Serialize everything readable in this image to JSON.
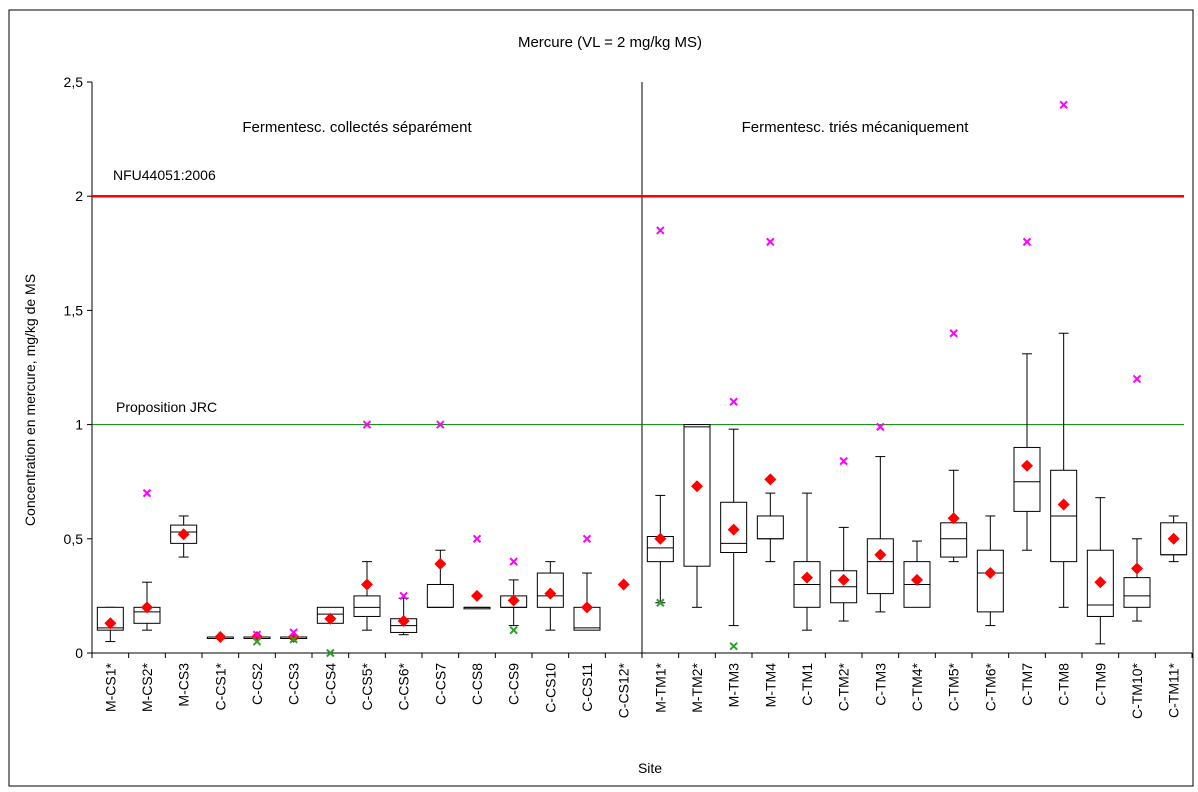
{
  "chart_data": {
    "type": "boxplot",
    "title": "Mercure (VL = 2 mg/kg MS)",
    "xlabel": "Site",
    "ylabel": "Concentration en mercure, mg/kg de MS",
    "ylim": [
      0,
      2.5
    ],
    "yticks": [
      0,
      0.5,
      1,
      1.5,
      2,
      2.5
    ],
    "ytick_labels": [
      "0",
      "0,5",
      "1",
      "1,5",
      "2",
      "2,5"
    ],
    "grid": false,
    "group_labels": [
      "Fermentesc. collectés séparément",
      "Fermentesc. triés mécaniquement"
    ],
    "reference_lines": [
      {
        "label": "NFU44051:2006",
        "value": 2.0,
        "color": "#ff0000"
      },
      {
        "label": "Proposition JRC",
        "value": 1.0,
        "color": "#008000"
      }
    ],
    "colors": {
      "mean": "#ff0000",
      "max_outlier": "#ff00ff",
      "min_outlier": "#2ca02c",
      "box": "#000000"
    },
    "categories": [
      "M-CS1*",
      "M-CS2*",
      "M-CS3",
      "C-CS1*",
      "C-CS2",
      "C-CS3",
      "C-CS4",
      "C-CS5*",
      "C-CS6*",
      "C-CS7",
      "C-CS8",
      "C-CS9",
      "C-CS10",
      "C-CS11",
      "C-CS12*",
      "M-TM1*",
      "M-TM2*",
      "M-TM3",
      "M-TM4",
      "C-TM1",
      "C-TM2*",
      "C-TM3",
      "C-TM4*",
      "C-TM5*",
      "C-TM6*",
      "C-TM7",
      "C-TM8",
      "C-TM9",
      "C-TM10*",
      "C-TM11*"
    ],
    "boxes": [
      {
        "q1": 0.1,
        "median": 0.11,
        "q3": 0.2,
        "wlo": 0.05,
        "whi": 0.2,
        "mean": 0.13,
        "max": null,
        "min": null
      },
      {
        "q1": 0.13,
        "median": 0.18,
        "q3": 0.2,
        "wlo": 0.1,
        "whi": 0.31,
        "mean": 0.2,
        "max": 0.7,
        "min": null
      },
      {
        "q1": 0.48,
        "median": 0.53,
        "q3": 0.56,
        "wlo": 0.42,
        "whi": 0.6,
        "mean": 0.52,
        "max": null,
        "min": null
      },
      {
        "q1": 0.07,
        "median": 0.07,
        "q3": 0.07,
        "wlo": null,
        "whi": null,
        "mean": 0.07,
        "max": null,
        "min": null
      },
      {
        "q1": 0.07,
        "median": 0.07,
        "q3": 0.07,
        "wlo": null,
        "whi": null,
        "mean": 0.07,
        "max": 0.08,
        "min": 0.05
      },
      {
        "q1": 0.07,
        "median": 0.07,
        "q3": 0.07,
        "wlo": null,
        "whi": null,
        "mean": 0.07,
        "max": 0.09,
        "min": 0.06
      },
      {
        "q1": 0.13,
        "median": 0.17,
        "q3": 0.2,
        "wlo": null,
        "whi": null,
        "mean": 0.15,
        "max": null,
        "min": 0.0
      },
      {
        "q1": 0.16,
        "median": 0.2,
        "q3": 0.25,
        "wlo": 0.1,
        "whi": 0.4,
        "mean": 0.3,
        "max": 1.0,
        "min": null
      },
      {
        "q1": 0.09,
        "median": 0.12,
        "q3": 0.15,
        "wlo": 0.08,
        "whi": 0.24,
        "mean": 0.14,
        "max": 0.25,
        "min": null
      },
      {
        "q1": 0.2,
        "median": 0.2,
        "q3": 0.3,
        "wlo": null,
        "whi": 0.45,
        "mean": 0.39,
        "max": 1.0,
        "min": null
      },
      {
        "q1": 0.2,
        "median": 0.2,
        "q3": 0.2,
        "wlo": null,
        "whi": null,
        "mean": 0.25,
        "max": 0.5,
        "min": null
      },
      {
        "q1": 0.2,
        "median": 0.2,
        "q3": 0.25,
        "wlo": 0.12,
        "whi": 0.32,
        "mean": 0.23,
        "max": 0.4,
        "min": 0.1
      },
      {
        "q1": 0.2,
        "median": 0.25,
        "q3": 0.35,
        "wlo": 0.1,
        "whi": 0.4,
        "mean": 0.26,
        "max": null,
        "min": null
      },
      {
        "q1": 0.1,
        "median": 0.11,
        "q3": 0.2,
        "wlo": null,
        "whi": 0.35,
        "mean": 0.2,
        "max": 0.5,
        "min": null
      },
      {
        "q1": null,
        "median": null,
        "q3": null,
        "wlo": null,
        "whi": null,
        "mean": 0.3,
        "max": null,
        "min": null
      },
      {
        "q1": 0.4,
        "median": 0.46,
        "q3": 0.51,
        "wlo": 0.22,
        "whi": 0.69,
        "mean": 0.5,
        "max": 1.85,
        "min": 0.22
      },
      {
        "q1": 0.38,
        "median": 0.99,
        "q3": 1.0,
        "wlo": 0.2,
        "whi": null,
        "mean": 0.73,
        "max": null,
        "min": null
      },
      {
        "q1": 0.44,
        "median": 0.48,
        "q3": 0.66,
        "wlo": 0.12,
        "whi": 0.98,
        "mean": 0.54,
        "max": 1.1,
        "min": 0.03
      },
      {
        "q1": 0.5,
        "median": 0.5,
        "q3": 0.6,
        "wlo": 0.4,
        "whi": 0.7,
        "mean": 0.76,
        "max": 1.8,
        "min": null
      },
      {
        "q1": 0.2,
        "median": 0.3,
        "q3": 0.4,
        "wlo": 0.1,
        "whi": 0.7,
        "mean": 0.33,
        "max": null,
        "min": null
      },
      {
        "q1": 0.22,
        "median": 0.29,
        "q3": 0.36,
        "wlo": 0.14,
        "whi": 0.55,
        "mean": 0.32,
        "max": 0.84,
        "min": null
      },
      {
        "q1": 0.26,
        "median": 0.4,
        "q3": 0.5,
        "wlo": 0.18,
        "whi": 0.86,
        "mean": 0.43,
        "max": 0.99,
        "min": null
      },
      {
        "q1": 0.2,
        "median": 0.3,
        "q3": 0.4,
        "wlo": null,
        "whi": 0.49,
        "mean": 0.32,
        "max": null,
        "min": null
      },
      {
        "q1": 0.42,
        "median": 0.5,
        "q3": 0.57,
        "wlo": 0.4,
        "whi": 0.8,
        "mean": 0.59,
        "max": 1.4,
        "min": null
      },
      {
        "q1": 0.18,
        "median": 0.35,
        "q3": 0.45,
        "wlo": 0.12,
        "whi": 0.6,
        "mean": 0.35,
        "max": null,
        "min": null
      },
      {
        "q1": 0.62,
        "median": 0.75,
        "q3": 0.9,
        "wlo": 0.45,
        "whi": 1.31,
        "mean": 0.82,
        "max": 1.8,
        "min": null
      },
      {
        "q1": 0.4,
        "median": 0.6,
        "q3": 0.8,
        "wlo": 0.2,
        "whi": 1.4,
        "mean": 0.65,
        "max": 2.4,
        "min": null
      },
      {
        "q1": 0.16,
        "median": 0.21,
        "q3": 0.45,
        "wlo": 0.04,
        "whi": 0.68,
        "mean": 0.31,
        "max": null,
        "min": null
      },
      {
        "q1": 0.2,
        "median": 0.25,
        "q3": 0.33,
        "wlo": 0.14,
        "whi": 0.5,
        "mean": 0.37,
        "max": 1.2,
        "min": null
      },
      {
        "q1": 0.43,
        "median": 0.43,
        "q3": 0.57,
        "wlo": 0.4,
        "whi": 0.6,
        "mean": 0.5,
        "max": null,
        "min": null
      }
    ]
  }
}
